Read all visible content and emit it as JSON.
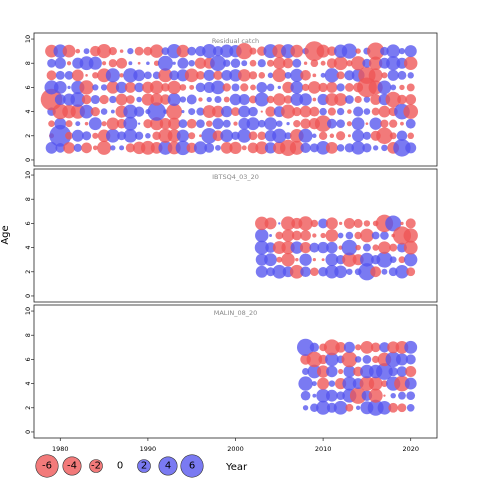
{
  "chart_data": {
    "type": "scatter",
    "encoding": "bubble",
    "xlabel": "Year",
    "ylabel": "Age",
    "xlim": [
      1977,
      2023
    ],
    "x_ticks": [
      1980,
      1990,
      2000,
      2010,
      2020
    ],
    "ylim": [
      -0.5,
      10.5
    ],
    "y_ticks": [
      0,
      2,
      4,
      6,
      8,
      10
    ],
    "colors": {
      "positive": "#5555ee",
      "negative": "#ee5555"
    },
    "legend": {
      "placement": "bottom",
      "entries": [
        {
          "label": "-6",
          "value": -6
        },
        {
          "label": "-4",
          "value": -4
        },
        {
          "label": "-2",
          "value": -2
        },
        {
          "label": "0",
          "value": 0
        },
        {
          "label": "2",
          "value": 2
        },
        {
          "label": "4",
          "value": 4
        },
        {
          "label": "6",
          "value": 6
        }
      ]
    },
    "panels": [
      {
        "name": "Residual catch",
        "years": [
          1979,
          2020
        ],
        "ages": [
          1,
          9
        ],
        "seed": 11,
        "highlights": [
          {
            "year": 1979,
            "age": 5,
            "value": -5.5
          },
          {
            "year": 1980,
            "age": 2,
            "value": 5.6
          },
          {
            "year": 1991,
            "age": 4,
            "value": 4.0
          },
          {
            "year": 2009,
            "age": 9,
            "value": -4.6
          },
          {
            "year": 2015,
            "age": 6,
            "value": -4.6
          },
          {
            "year": 2015,
            "age": 7,
            "value": -3.5
          },
          {
            "year": 2016,
            "age": 9,
            "value": -3.5
          },
          {
            "year": 2017,
            "age": 2,
            "value": -3.2
          },
          {
            "year": 2019,
            "age": 1,
            "value": 3.6
          }
        ]
      },
      {
        "name": "IBTSQ4_03_20",
        "years": [
          2003,
          2020
        ],
        "ages": [
          2,
          6
        ],
        "seed": 37,
        "highlights": [
          {
            "year": 2017,
            "age": 6,
            "value": -3.6
          },
          {
            "year": 2019,
            "age": 5,
            "value": -3.9
          },
          {
            "year": 2015,
            "age": 2,
            "value": 3.5
          },
          {
            "year": 2017,
            "age": 3,
            "value": 3.0
          },
          {
            "year": 2018,
            "age": 6,
            "value": 3.0
          }
        ]
      },
      {
        "name": "MALIN_08_20",
        "years": [
          2008,
          2020
        ],
        "ages": [
          2,
          7
        ],
        "seed": 73,
        "highlights": [
          {
            "year": 2008,
            "age": 7,
            "value": 3.5
          },
          {
            "year": 2014,
            "age": 3,
            "value": -3.2
          },
          {
            "year": 2017,
            "age": 5,
            "value": 3.3
          },
          {
            "year": 2016,
            "age": 2,
            "value": 3.0
          },
          {
            "year": 2013,
            "age": 6,
            "value": -2.9
          }
        ]
      }
    ]
  }
}
